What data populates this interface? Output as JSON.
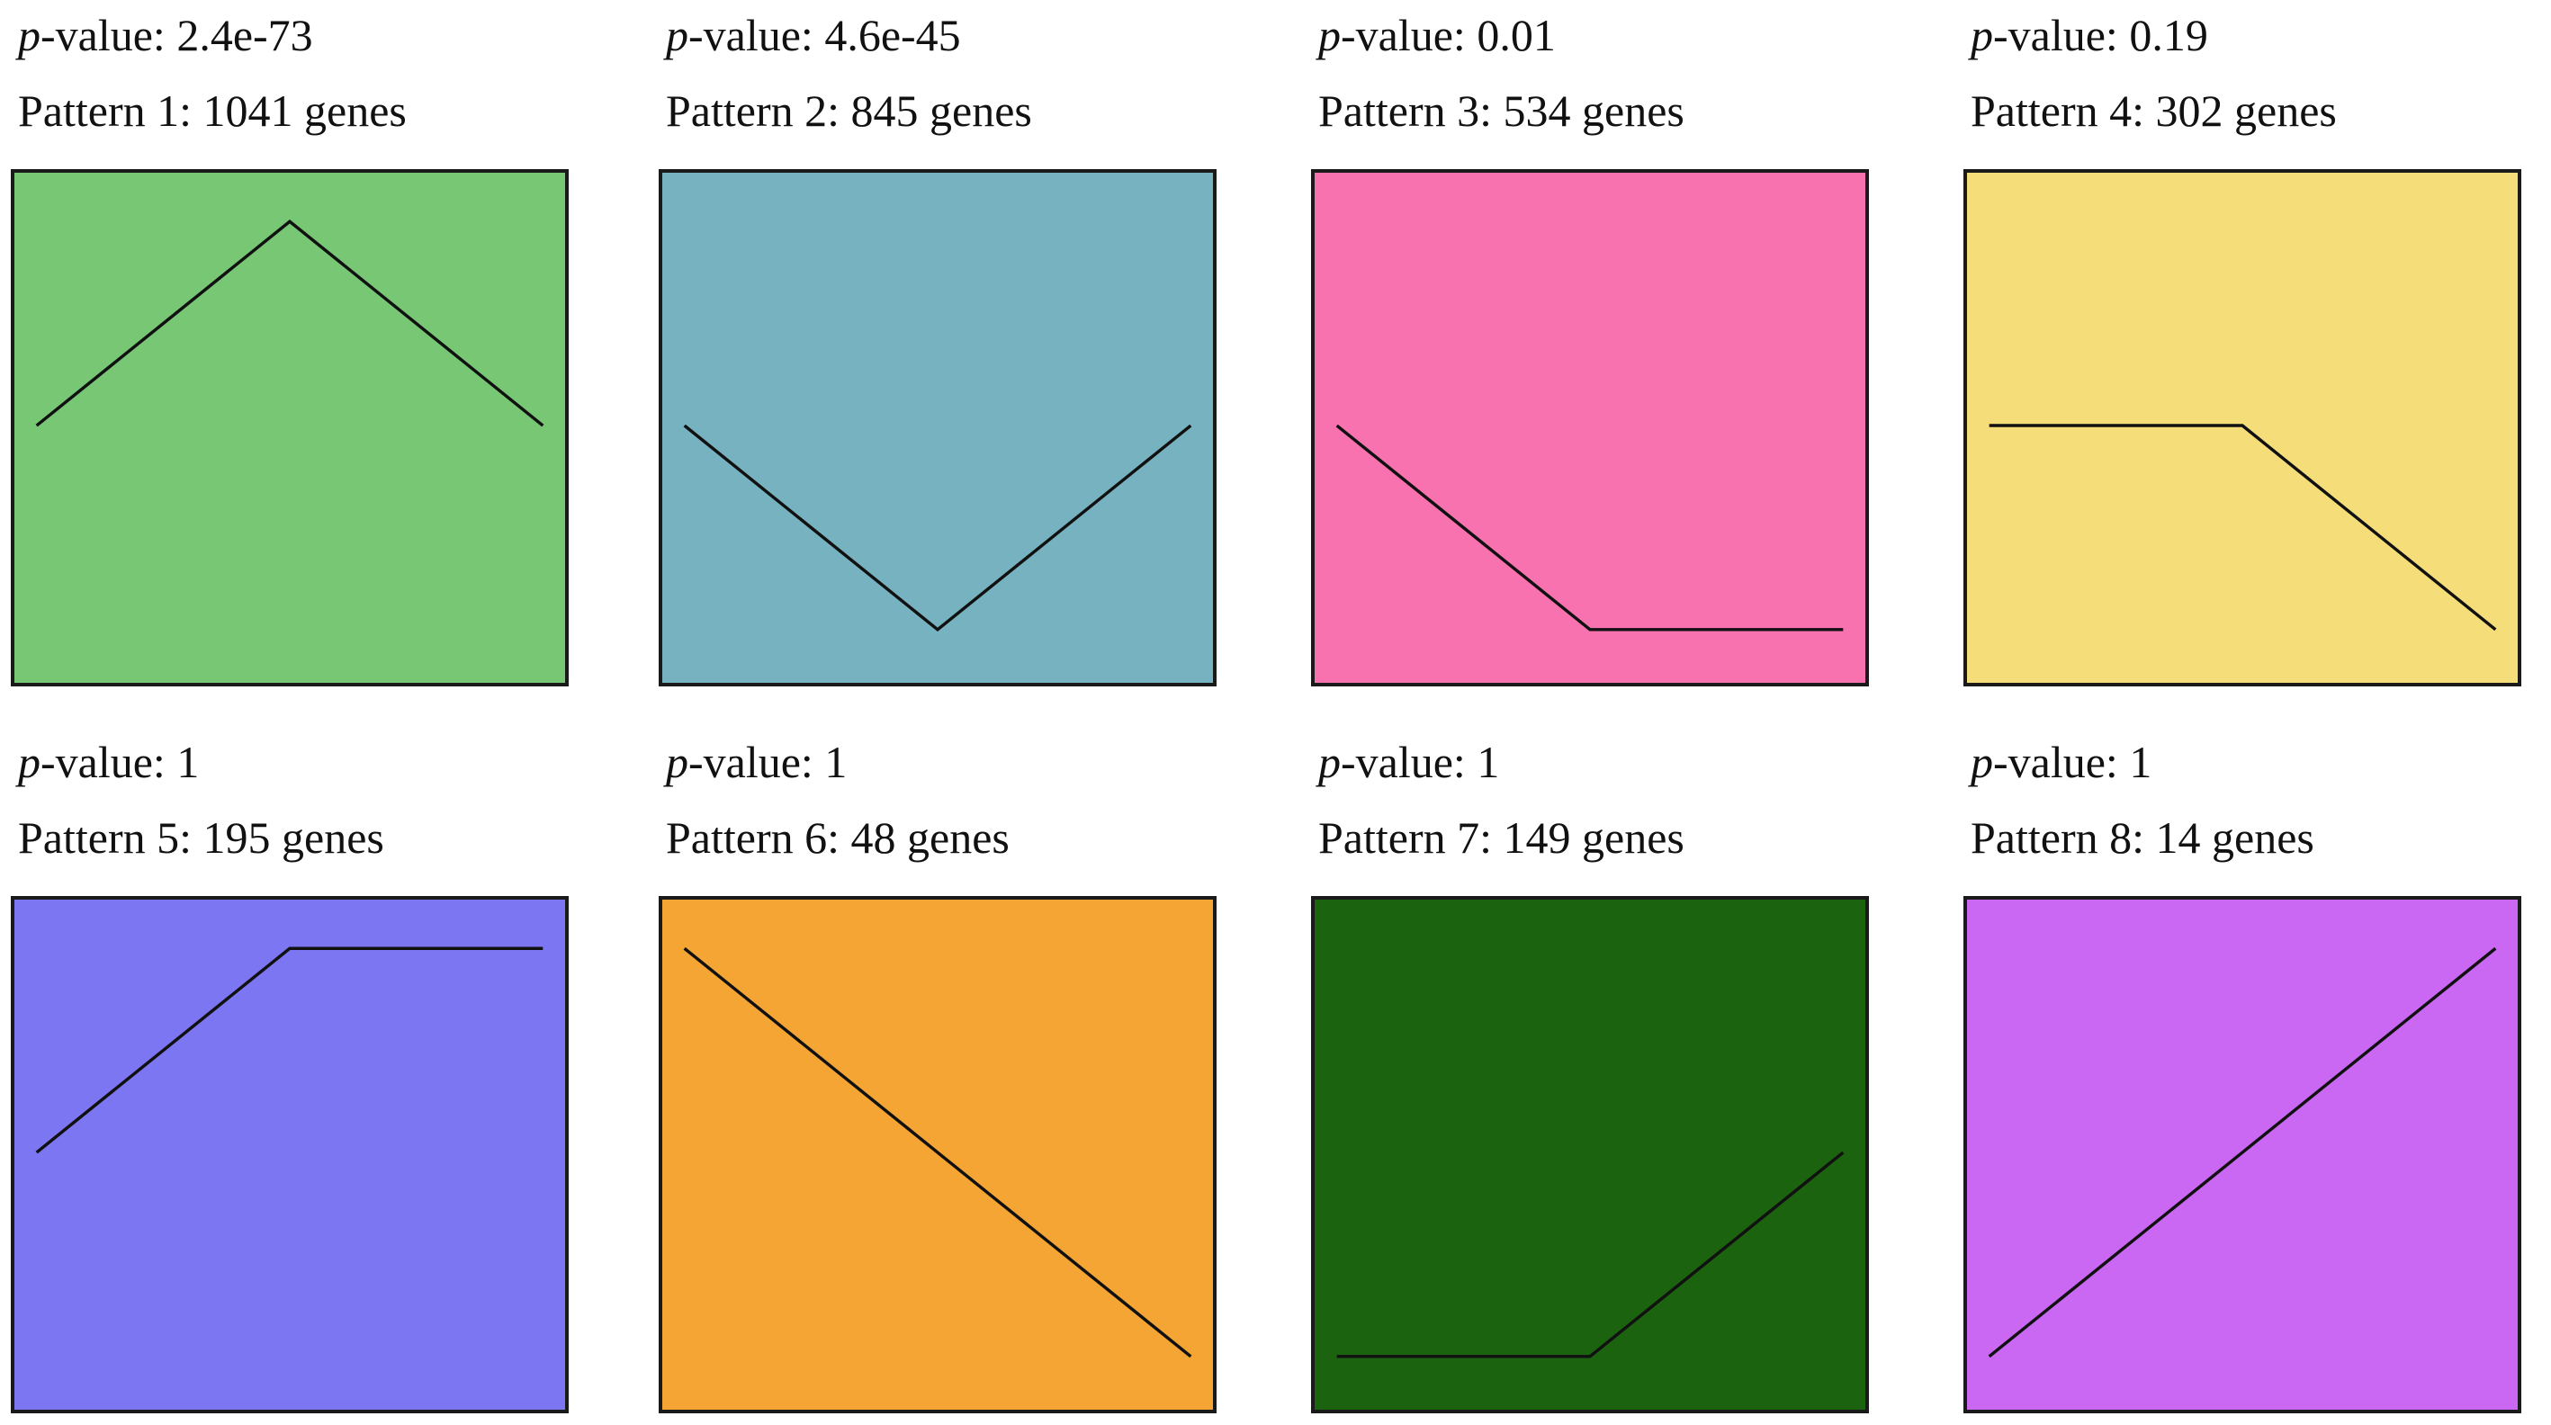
{
  "chart_data": [
    {
      "type": "line",
      "p_value_label": "p",
      "p_value_text": "-value: 2.4e-73",
      "pattern_text": "Pattern 1: 1041 genes",
      "color": "#77C775",
      "x": [
        0,
        1,
        2
      ],
      "y": [
        0.5,
        1,
        0.5
      ]
    },
    {
      "type": "line",
      "p_value_label": "p",
      "p_value_text": "-value: 4.6e-45",
      "pattern_text": "Pattern 2: 845 genes",
      "color": "#77B2C1",
      "x": [
        0,
        1,
        2
      ],
      "y": [
        0.5,
        0,
        0.5
      ]
    },
    {
      "type": "line",
      "p_value_label": "p",
      "p_value_text": "-value: 0.01",
      "pattern_text": "Pattern 3: 534 genes",
      "color": "#F772AF",
      "x": [
        0,
        1,
        2
      ],
      "y": [
        0.5,
        0,
        0
      ]
    },
    {
      "type": "line",
      "p_value_label": "p",
      "p_value_text": "-value: 0.19",
      "pattern_text": "Pattern 4: 302 genes",
      "color": "#F5DE7A",
      "x": [
        0,
        1,
        2
      ],
      "y": [
        0.5,
        0.5,
        0
      ]
    },
    {
      "type": "line",
      "p_value_label": "p",
      "p_value_text": "-value: 1",
      "pattern_text": "Pattern 5: 195 genes",
      "color": "#7D76F2",
      "x": [
        0,
        1,
        2
      ],
      "y": [
        0.5,
        1,
        1
      ]
    },
    {
      "type": "line",
      "p_value_label": "p",
      "p_value_text": "-value: 1",
      "pattern_text": "Pattern 6: 48 genes",
      "color": "#F4A533",
      "x": [
        0,
        1,
        2
      ],
      "y": [
        1,
        0.5,
        0
      ]
    },
    {
      "type": "line",
      "p_value_label": "p",
      "p_value_text": "-value: 1",
      "pattern_text": "Pattern 7: 149 genes",
      "color": "#1B630E",
      "x": [
        0,
        1,
        2
      ],
      "y": [
        0,
        0,
        0.5
      ]
    },
    {
      "type": "line",
      "p_value_label": "p",
      "p_value_text": "-value: 1",
      "pattern_text": "Pattern 8: 14 genes",
      "color": "#CB68F3",
      "x": [
        0,
        1,
        2
      ],
      "y": [
        0,
        0.5,
        1
      ]
    }
  ]
}
